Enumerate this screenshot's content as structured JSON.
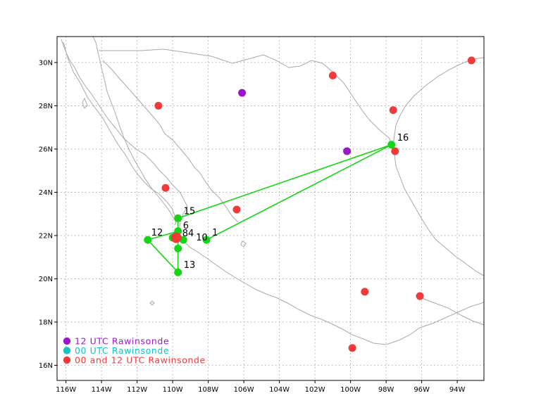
{
  "colors": {
    "rawinsonde_12": "#9b17c9",
    "rawinsonde_00": "#12c4c4",
    "rawinsonde_both": "#f23a3a",
    "track": "#15d615",
    "coast": "#a9a9a9",
    "grid": "#9a9a9a"
  },
  "map": {
    "lon_range": [
      -116.5,
      -92.5
    ],
    "lat_range": [
      15.3,
      31.2
    ],
    "lon_ticks": [
      {
        "v": -116,
        "label": "116W"
      },
      {
        "v": -114,
        "label": "114W"
      },
      {
        "v": -112,
        "label": "112W"
      },
      {
        "v": -110,
        "label": "110W"
      },
      {
        "v": -108,
        "label": "108W"
      },
      {
        "v": -106,
        "label": "106W"
      },
      {
        "v": -104,
        "label": "104W"
      },
      {
        "v": -102,
        "label": "102W"
      },
      {
        "v": -100,
        "label": "100W"
      },
      {
        "v": -98,
        "label": "98W"
      },
      {
        "v": -96,
        "label": "96W"
      },
      {
        "v": -94,
        "label": "94W"
      }
    ],
    "lat_ticks": [
      {
        "v": 16,
        "label": "16N"
      },
      {
        "v": 18,
        "label": "18N"
      },
      {
        "v": 20,
        "label": "20N"
      },
      {
        "v": 22,
        "label": "22N"
      },
      {
        "v": 24,
        "label": "24N"
      },
      {
        "v": 26,
        "label": "26N"
      },
      {
        "v": 28,
        "label": "28N"
      },
      {
        "v": 30,
        "label": "30N"
      }
    ]
  },
  "stations": {
    "rawinsonde_12": [
      [
        -106.1,
        28.6
      ],
      [
        -100.2,
        25.9
      ]
    ],
    "rawinsonde_both": [
      [
        -110.8,
        28.0
      ],
      [
        -101.0,
        29.4
      ],
      [
        -93.2,
        30.1
      ],
      [
        -97.6,
        27.8
      ],
      [
        -97.5,
        25.9
      ],
      [
        -110.4,
        24.2
      ],
      [
        -106.4,
        23.2
      ],
      [
        -99.2,
        19.4
      ],
      [
        -96.1,
        19.2
      ],
      [
        -99.9,
        16.8
      ],
      [
        -109.8,
        21.9
      ]
    ]
  },
  "track_points": [
    {
      "label": "1",
      "lon": -108.1,
      "lat": 21.8
    },
    {
      "label": "16",
      "lon": -97.7,
      "lat": 26.2
    },
    {
      "label": "15",
      "lon": -109.7,
      "lat": 22.8
    },
    {
      "label": "6",
      "lon": -109.7,
      "lat": 22.2
    },
    {
      "label": "12",
      "lon": -111.4,
      "lat": 21.8
    },
    {
      "label": "13",
      "lon": -109.7,
      "lat": 20.3
    },
    {
      "label": "84",
      "lon": -109.7,
      "lat": 21.9
    },
    {
      "label": "10",
      "lon": -109.4,
      "lat": 21.8
    },
    {
      "label": "",
      "lon": -109.7,
      "lat": 21.4
    },
    {
      "label": "",
      "lon": -110.0,
      "lat": 21.9
    }
  ],
  "track_path_order": [
    "1",
    "16",
    "15",
    "6",
    "12",
    "13",
    "84",
    "10"
  ],
  "legend": [
    {
      "key": "rawinsonde_12",
      "label": "12 UTC Rawinsonde"
    },
    {
      "key": "rawinsonde_00",
      "label": "00 UTC Rawinsonde"
    },
    {
      "key": "rawinsonde_both",
      "label": "00 and 12 UTC Rawinsonde"
    }
  ]
}
